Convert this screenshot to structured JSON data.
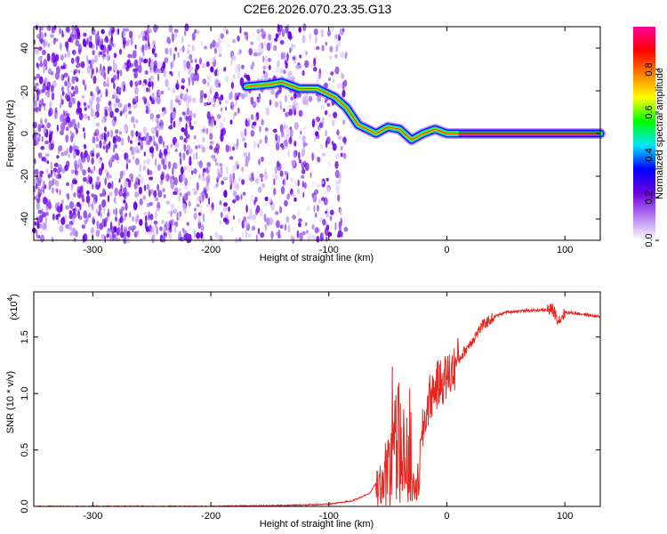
{
  "chart_data": [
    {
      "type": "heatmap",
      "title": "C2E6.2026.070.23.35.G13",
      "xlabel": "Height of straight line (km)",
      "ylabel": "Frequency (Hz)",
      "xlim": [
        -350,
        130
      ],
      "ylim": [
        -50,
        50
      ],
      "xticks": [
        -300,
        -200,
        -100,
        0,
        100
      ],
      "yticks": [
        -40,
        -20,
        0,
        20,
        40
      ],
      "grid": false,
      "colorbar": {
        "label": "Normalized spectral amplitude",
        "range": [
          0,
          1
        ],
        "ticks": [
          "0.0",
          "0.2",
          "0.4",
          "0.6",
          "0.8"
        ],
        "colors": [
          "#ffffff",
          "#b57cf2",
          "#6a00e0",
          "#0000ff",
          "#00e5ff",
          "#00ff00",
          "#ffff00",
          "#ff8000",
          "#ff0000",
          "#ff00a0"
        ]
      },
      "features": {
        "noise_region": [
          -350,
          -85
        ],
        "carrier": {
          "x": [
            -170,
            -150,
            -140,
            -125,
            -110,
            -95,
            -85,
            -75,
            -60,
            -50,
            -40,
            -30,
            -20,
            -10,
            0,
            10,
            50,
            100,
            130
          ],
          "y": [
            22,
            23,
            24,
            21,
            21,
            17,
            12,
            4,
            0,
            3,
            2,
            -3,
            0,
            2,
            0,
            0,
            0,
            0,
            0
          ]
        }
      }
    },
    {
      "type": "line",
      "xlabel": "Height of straight line (km)",
      "ylabel": "SNR (10 * v/v)",
      "yunit": "(x10",
      "yunit_exp": "4",
      "xlim": [
        -350,
        130
      ],
      "ylim": [
        0,
        1.9
      ],
      "xticks": [
        -300,
        -200,
        -100,
        0,
        100
      ],
      "yticks": [
        "0.0",
        "0.5",
        "1.0",
        "1.5"
      ],
      "grid": false,
      "series": [
        {
          "color": "#e8251f",
          "x": [
            -350,
            -200,
            -130,
            -100,
            -80,
            -65,
            -55,
            -50,
            -45,
            -40,
            -35,
            -30,
            -25,
            -20,
            -15,
            -10,
            -5,
            0,
            5,
            10,
            20,
            30,
            40,
            50,
            60,
            80,
            90,
            95,
            100,
            110,
            130
          ],
          "y": [
            0.0,
            0.0,
            0.01,
            0.02,
            0.05,
            0.12,
            0.3,
            0.5,
            0.7,
            0.8,
            0.6,
            0.3,
            0.15,
            0.7,
            0.95,
            1.05,
            1.1,
            1.15,
            1.2,
            1.3,
            1.45,
            1.6,
            1.68,
            1.72,
            1.73,
            1.74,
            1.74,
            1.65,
            1.72,
            1.71,
            1.68
          ]
        }
      ]
    }
  ]
}
